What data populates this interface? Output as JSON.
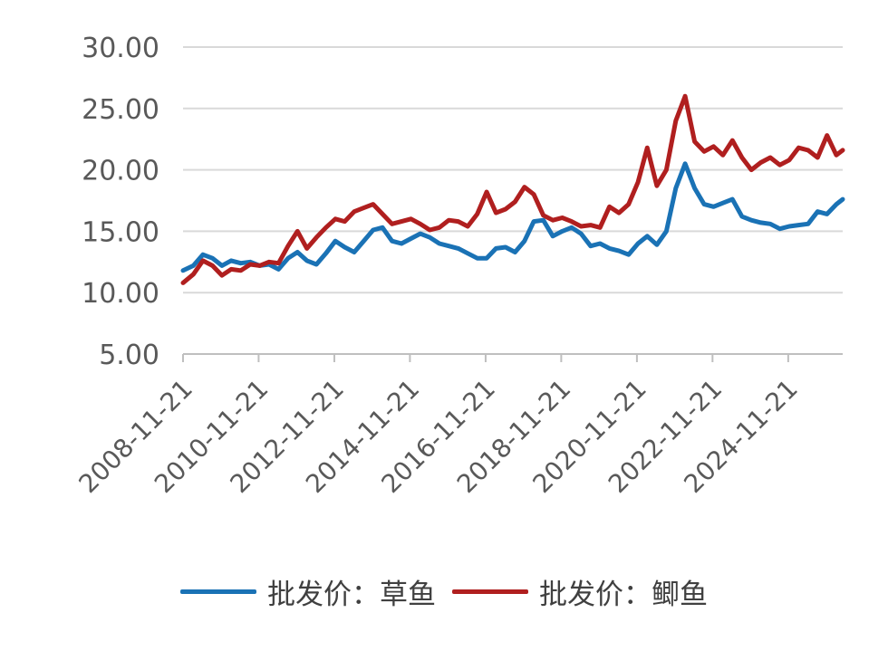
{
  "chart_data": {
    "type": "line",
    "title": "",
    "xlabel": "",
    "ylabel": "",
    "ylim": [
      5,
      30
    ],
    "y_ticks": [
      "5.00",
      "10.00",
      "15.00",
      "20.00",
      "25.00",
      "30.00"
    ],
    "x_ticks": [
      "2008-11-21",
      "2010-11-21",
      "2012-11-21",
      "2014-11-21",
      "2016-11-21",
      "2018-11-21",
      "2020-11-21",
      "2022-11-21",
      "2024-11-21"
    ],
    "x_range": [
      "2008-11-21",
      "2026-05-01"
    ],
    "grid": "horizontal",
    "legend_position": "bottom",
    "series": [
      {
        "name": "批发价：草鱼",
        "color": "#1a72b5",
        "points": [
          [
            "2008-11-21",
            11.8
          ],
          [
            "2009-03-01",
            12.2
          ],
          [
            "2009-06-01",
            13.1
          ],
          [
            "2009-09-01",
            12.8
          ],
          [
            "2009-12-01",
            12.2
          ],
          [
            "2010-03-01",
            12.6
          ],
          [
            "2010-06-01",
            12.4
          ],
          [
            "2010-09-01",
            12.5
          ],
          [
            "2010-12-01",
            12.2
          ],
          [
            "2011-03-01",
            12.3
          ],
          [
            "2011-06-01",
            11.9
          ],
          [
            "2011-09-01",
            12.8
          ],
          [
            "2011-12-01",
            13.3
          ],
          [
            "2012-03-01",
            12.6
          ],
          [
            "2012-06-01",
            12.3
          ],
          [
            "2012-09-01",
            13.2
          ],
          [
            "2012-12-01",
            14.2
          ],
          [
            "2013-03-01",
            13.7
          ],
          [
            "2013-06-01",
            13.3
          ],
          [
            "2013-09-01",
            14.2
          ],
          [
            "2013-12-01",
            15.1
          ],
          [
            "2014-03-01",
            15.3
          ],
          [
            "2014-06-01",
            14.2
          ],
          [
            "2014-09-01",
            14.0
          ],
          [
            "2014-12-01",
            14.4
          ],
          [
            "2015-03-01",
            14.8
          ],
          [
            "2015-06-01",
            14.5
          ],
          [
            "2015-09-01",
            14.0
          ],
          [
            "2015-12-01",
            13.8
          ],
          [
            "2016-03-01",
            13.6
          ],
          [
            "2016-06-01",
            13.2
          ],
          [
            "2016-09-01",
            12.8
          ],
          [
            "2016-12-01",
            12.8
          ],
          [
            "2017-03-01",
            13.6
          ],
          [
            "2017-06-01",
            13.7
          ],
          [
            "2017-09-01",
            13.3
          ],
          [
            "2017-12-01",
            14.2
          ],
          [
            "2018-03-01",
            15.8
          ],
          [
            "2018-06-01",
            15.9
          ],
          [
            "2018-09-01",
            14.6
          ],
          [
            "2018-12-01",
            15.0
          ],
          [
            "2019-03-01",
            15.3
          ],
          [
            "2019-06-01",
            14.8
          ],
          [
            "2019-09-01",
            13.8
          ],
          [
            "2019-12-01",
            14.0
          ],
          [
            "2020-03-01",
            13.6
          ],
          [
            "2020-06-01",
            13.4
          ],
          [
            "2020-09-01",
            13.1
          ],
          [
            "2020-12-01",
            14.0
          ],
          [
            "2021-03-01",
            14.6
          ],
          [
            "2021-06-01",
            13.9
          ],
          [
            "2021-09-01",
            15.0
          ],
          [
            "2021-12-01",
            18.5
          ],
          [
            "2022-03-01",
            20.5
          ],
          [
            "2022-06-01",
            18.5
          ],
          [
            "2022-09-01",
            17.2
          ],
          [
            "2022-12-01",
            17.0
          ],
          [
            "2023-03-01",
            17.3
          ],
          [
            "2023-06-01",
            17.6
          ],
          [
            "2023-09-01",
            16.2
          ],
          [
            "2023-12-01",
            15.9
          ],
          [
            "2024-03-01",
            15.7
          ],
          [
            "2024-06-01",
            15.6
          ],
          [
            "2024-09-01",
            15.2
          ],
          [
            "2024-12-01",
            15.4
          ],
          [
            "2025-03-01",
            15.5
          ],
          [
            "2025-06-01",
            15.6
          ],
          [
            "2025-09-01",
            16.6
          ],
          [
            "2025-12-01",
            16.4
          ],
          [
            "2026-03-01",
            17.2
          ],
          [
            "2026-05-01",
            17.6
          ]
        ]
      },
      {
        "name": "批发价：鲫鱼",
        "color": "#b01f1f",
        "points": [
          [
            "2008-11-21",
            10.8
          ],
          [
            "2009-03-01",
            11.5
          ],
          [
            "2009-06-01",
            12.6
          ],
          [
            "2009-09-01",
            12.2
          ],
          [
            "2009-12-01",
            11.4
          ],
          [
            "2010-03-01",
            11.9
          ],
          [
            "2010-06-01",
            11.8
          ],
          [
            "2010-09-01",
            12.3
          ],
          [
            "2010-12-01",
            12.2
          ],
          [
            "2011-03-01",
            12.5
          ],
          [
            "2011-06-01",
            12.4
          ],
          [
            "2011-09-01",
            13.8
          ],
          [
            "2011-12-01",
            15.0
          ],
          [
            "2012-03-01",
            13.6
          ],
          [
            "2012-06-01",
            14.5
          ],
          [
            "2012-09-01",
            15.3
          ],
          [
            "2012-12-01",
            16.0
          ],
          [
            "2013-03-01",
            15.8
          ],
          [
            "2013-06-01",
            16.6
          ],
          [
            "2013-09-01",
            16.9
          ],
          [
            "2013-12-01",
            17.2
          ],
          [
            "2014-03-01",
            16.4
          ],
          [
            "2014-06-01",
            15.6
          ],
          [
            "2014-09-01",
            15.8
          ],
          [
            "2014-12-01",
            16.0
          ],
          [
            "2015-03-01",
            15.6
          ],
          [
            "2015-06-01",
            15.1
          ],
          [
            "2015-09-01",
            15.3
          ],
          [
            "2015-12-01",
            15.9
          ],
          [
            "2016-03-01",
            15.8
          ],
          [
            "2016-06-01",
            15.4
          ],
          [
            "2016-09-01",
            16.4
          ],
          [
            "2016-12-01",
            18.2
          ],
          [
            "2017-03-01",
            16.5
          ],
          [
            "2017-06-01",
            16.8
          ],
          [
            "2017-09-01",
            17.4
          ],
          [
            "2017-12-01",
            18.6
          ],
          [
            "2018-03-01",
            18.0
          ],
          [
            "2018-06-01",
            16.3
          ],
          [
            "2018-09-01",
            15.9
          ],
          [
            "2018-12-01",
            16.1
          ],
          [
            "2019-03-01",
            15.8
          ],
          [
            "2019-06-01",
            15.4
          ],
          [
            "2019-09-01",
            15.5
          ],
          [
            "2019-12-01",
            15.3
          ],
          [
            "2020-03-01",
            17.0
          ],
          [
            "2020-06-01",
            16.5
          ],
          [
            "2020-09-01",
            17.2
          ],
          [
            "2020-12-01",
            19.0
          ],
          [
            "2021-03-01",
            21.8
          ],
          [
            "2021-06-01",
            18.7
          ],
          [
            "2021-09-01",
            20.0
          ],
          [
            "2021-12-01",
            24.0
          ],
          [
            "2022-03-01",
            26.0
          ],
          [
            "2022-06-01",
            22.3
          ],
          [
            "2022-09-01",
            21.5
          ],
          [
            "2022-12-01",
            21.9
          ],
          [
            "2023-03-01",
            21.2
          ],
          [
            "2023-06-01",
            22.4
          ],
          [
            "2023-09-01",
            21.0
          ],
          [
            "2023-12-01",
            20.0
          ],
          [
            "2024-03-01",
            20.6
          ],
          [
            "2024-06-01",
            21.0
          ],
          [
            "2024-09-01",
            20.4
          ],
          [
            "2024-12-01",
            20.8
          ],
          [
            "2025-03-01",
            21.8
          ],
          [
            "2025-06-01",
            21.6
          ],
          [
            "2025-09-01",
            21.0
          ],
          [
            "2025-12-01",
            22.8
          ],
          [
            "2026-03-01",
            21.2
          ],
          [
            "2026-05-01",
            21.6
          ]
        ]
      }
    ]
  }
}
